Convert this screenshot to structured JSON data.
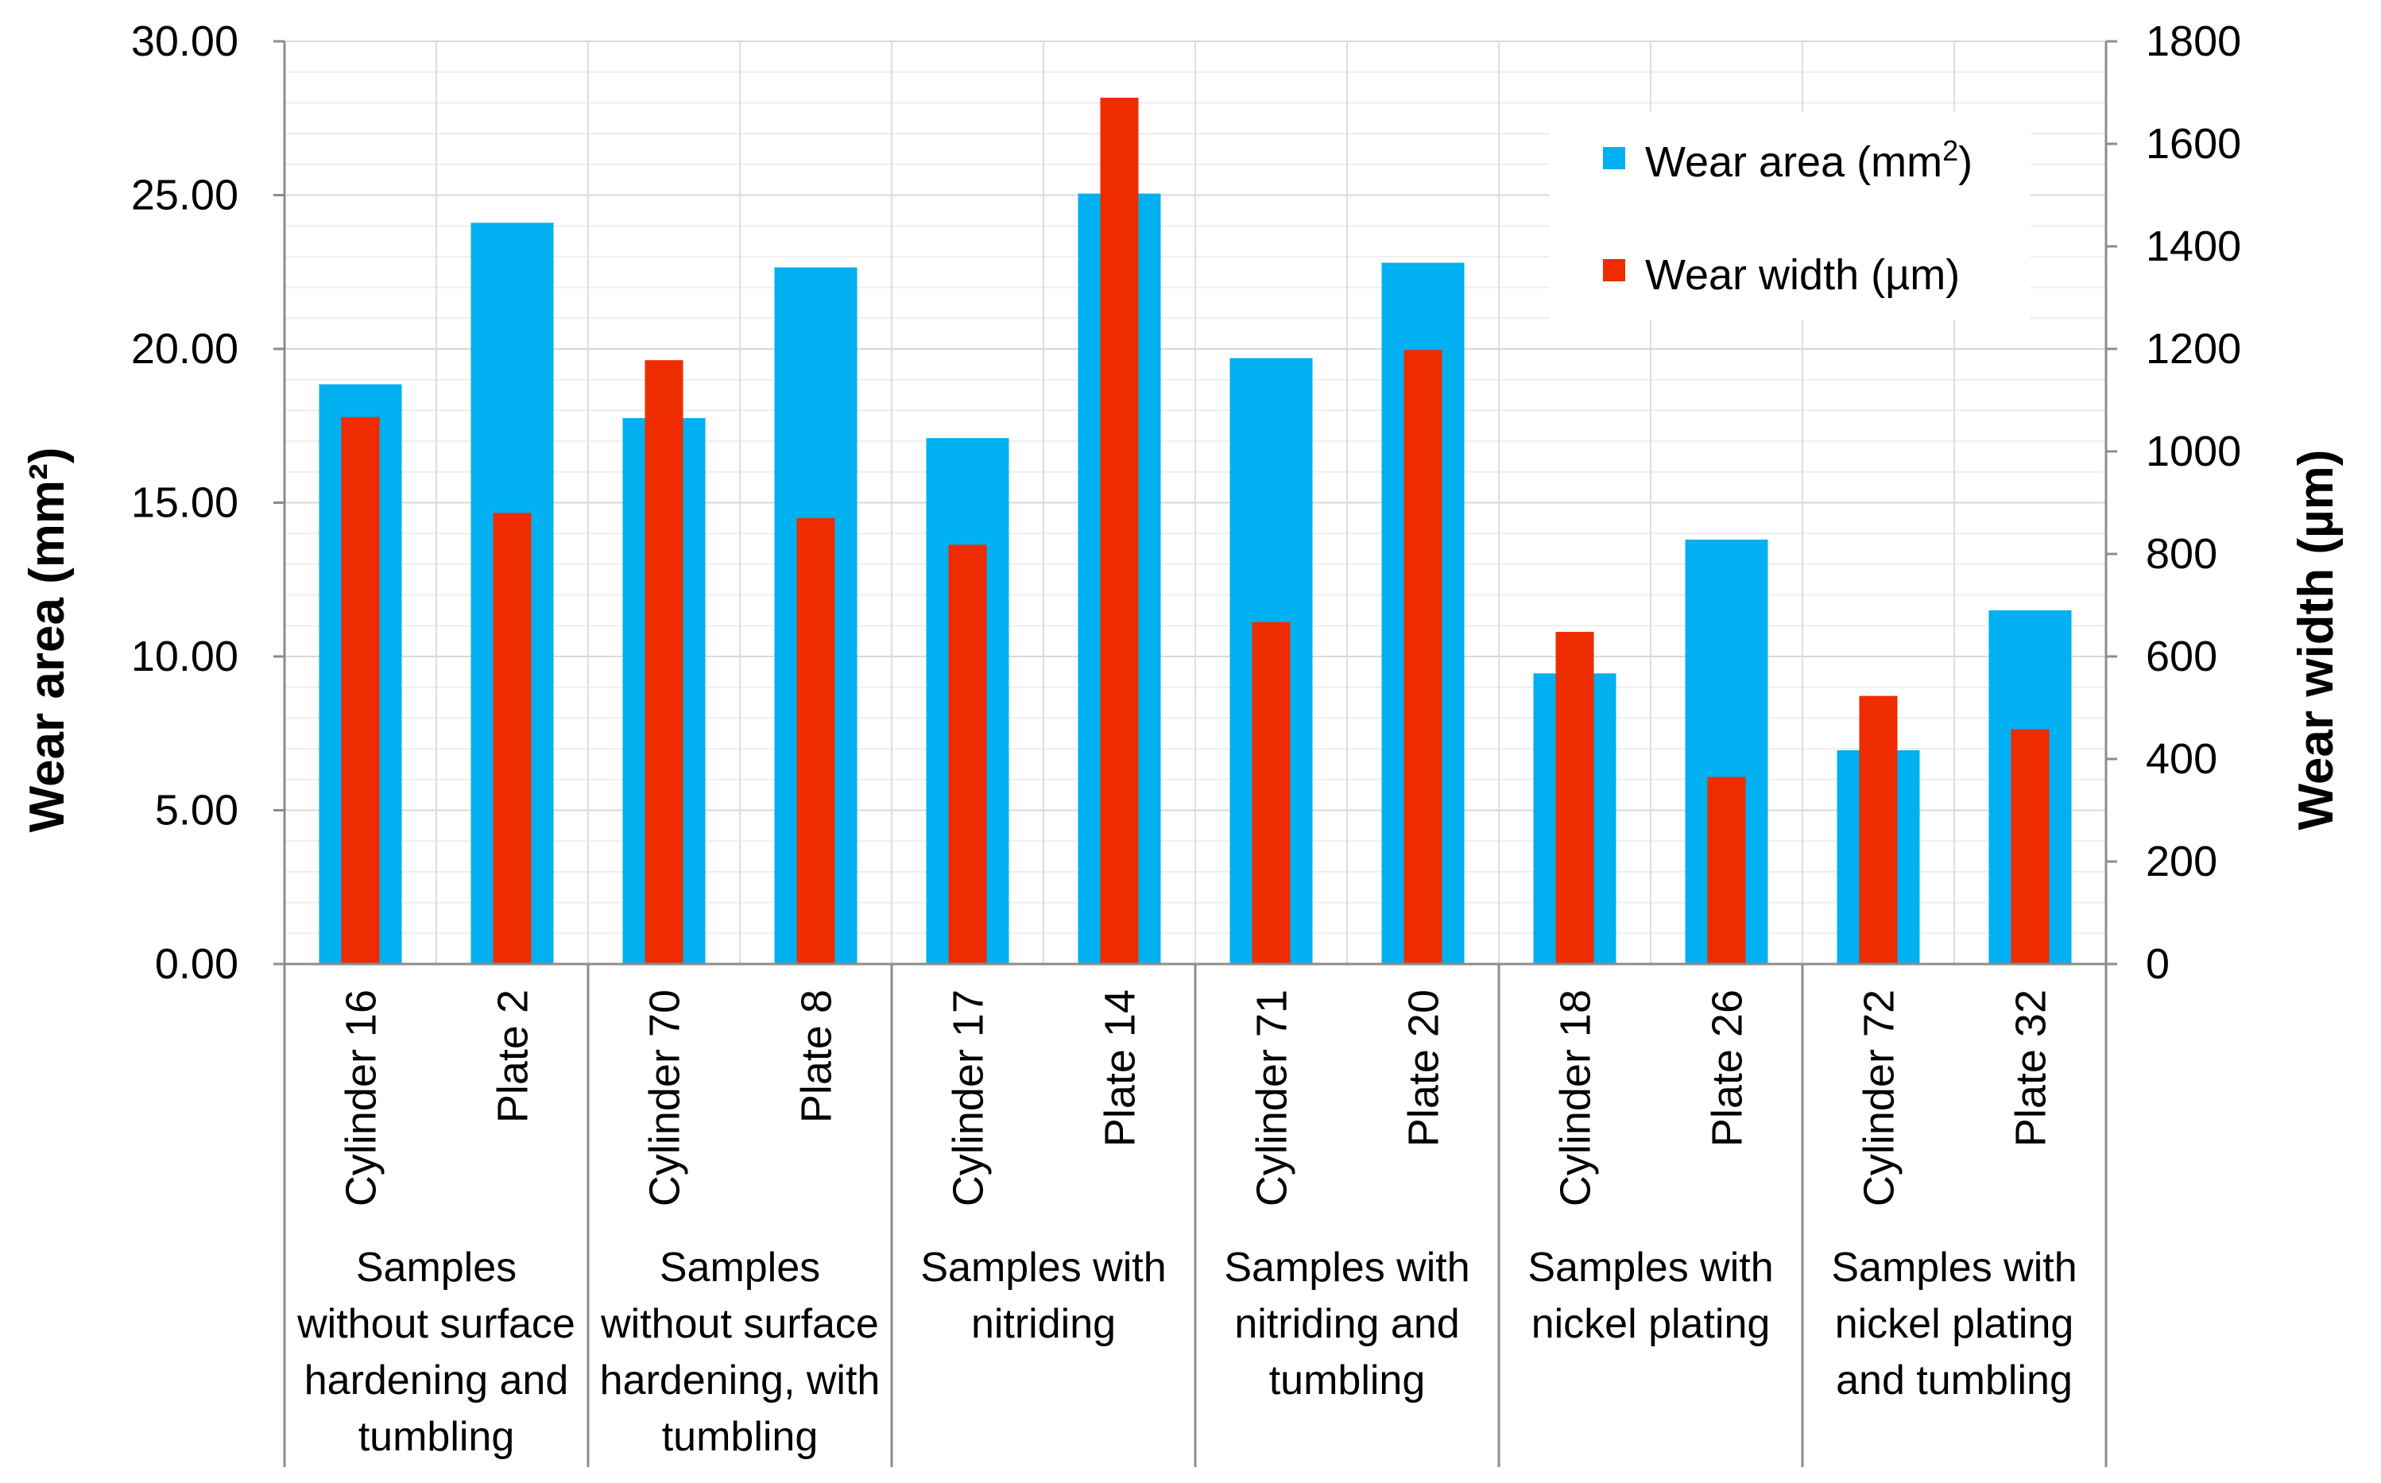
{
  "chart_data": {
    "type": "bar",
    "title": "",
    "ylabel": "Wear area (mm²)",
    "ylabel_right": "Wear width (µm)",
    "ylim": [
      0,
      30
    ],
    "ylim_right": [
      0,
      1800
    ],
    "yticks": [
      "0.00",
      "5.00",
      "10.00",
      "15.00",
      "20.00",
      "25.00",
      "30.00"
    ],
    "yticks_right": [
      "0",
      "200",
      "400",
      "600",
      "800",
      "1000",
      "1200",
      "1400",
      "1600",
      "1800"
    ],
    "categories": [
      "Cylinder 16",
      "Plate 2",
      "Cylinder 70",
      "Plate 8",
      "Cylinder 17",
      "Plate 14",
      "Cylinder 71",
      "Plate 20",
      "Cylinder 18",
      "Plate 26",
      "Cylinder 72",
      "Plate 32"
    ],
    "groups": [
      {
        "lines": [
          "Samples",
          "without surface",
          "hardening and",
          "tumbling"
        ]
      },
      {
        "lines": [
          "Samples",
          "without surface",
          "hardening, with",
          "tumbling"
        ]
      },
      {
        "lines": [
          "Samples with",
          "nitriding"
        ]
      },
      {
        "lines": [
          "Samples with",
          "nitriding and",
          "tumbling"
        ]
      },
      {
        "lines": [
          "Samples with",
          "nickel plating"
        ]
      },
      {
        "lines": [
          "Samples with",
          "nickel plating",
          "and tumbling"
        ]
      }
    ],
    "series": [
      {
        "name": "Wear area (mm²)",
        "axis": "left",
        "color": "#00b0f0",
        "values": [
          18.85,
          24.1,
          17.75,
          22.65,
          17.1,
          25.05,
          19.7,
          22.8,
          9.45,
          13.8,
          6.95,
          11.5
        ]
      },
      {
        "name": "Wear width (µm)",
        "axis": "right",
        "color": "#ee2c00",
        "values": [
          1067,
          880,
          1178,
          870,
          818,
          1690,
          667,
          1198,
          648,
          365,
          523,
          458
        ]
      }
    ],
    "legend": {
      "position": "top-right",
      "entries": [
        {
          "label": "Wear area (mm",
          "sup": "2",
          "tail": ")"
        },
        {
          "label": "Wear width (µm)",
          "sup": "",
          "tail": ""
        }
      ]
    }
  }
}
